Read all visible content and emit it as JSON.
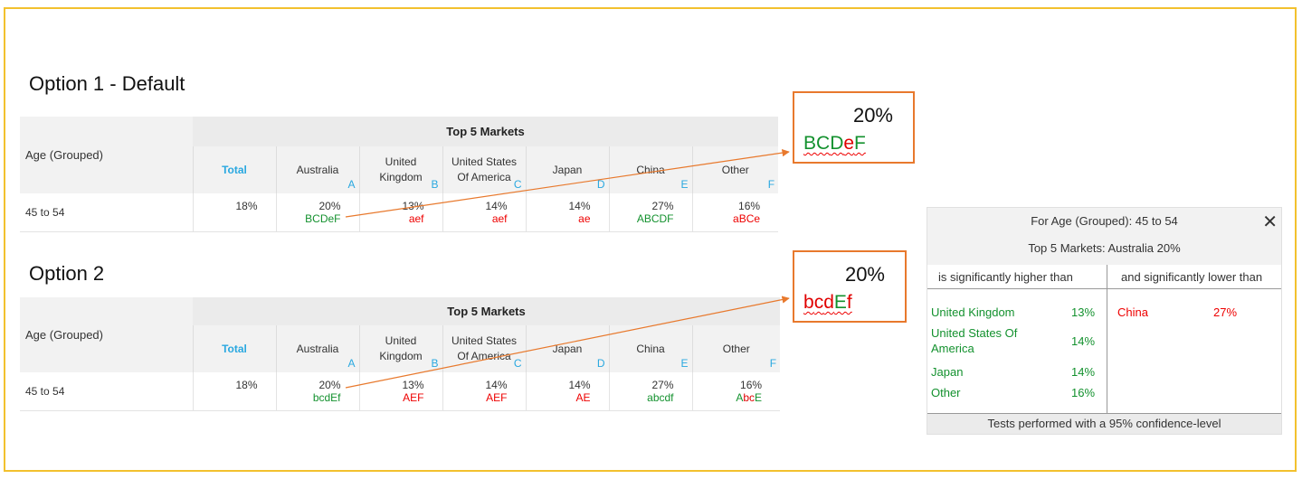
{
  "colors": {
    "frame": "#f2c12e",
    "callout_border": "#e8792d",
    "arrow": "#e8792d",
    "significant_higher": "#13912e",
    "significant_lower": "#e00000",
    "column_letter": "#29a8e0"
  },
  "option1": {
    "title": "Option 1 - Default",
    "row_header": "Age (Grouped)",
    "group_header": "Top 5 Markets",
    "columns": [
      {
        "name": "Total",
        "letter": ""
      },
      {
        "name": "Australia",
        "letter": "A"
      },
      {
        "name": "United Kingdom",
        "letter": "B"
      },
      {
        "name": "United States Of America",
        "letter": "C"
      },
      {
        "name": "Japan",
        "letter": "D"
      },
      {
        "name": "China",
        "letter": "E"
      },
      {
        "name": "Other",
        "letter": "F"
      }
    ],
    "row_label": "45 to 54",
    "cells": [
      {
        "value": "18%",
        "sig": ""
      },
      {
        "value": "20%",
        "sig": "BCDeF"
      },
      {
        "value": "13%",
        "sig": "aef"
      },
      {
        "value": "14%",
        "sig": "aef"
      },
      {
        "value": "14%",
        "sig": "ae"
      },
      {
        "value": "27%",
        "sig": "ABCDF"
      },
      {
        "value": "16%",
        "sig": "aBCe"
      }
    ],
    "callout": {
      "value": "20%",
      "sig": "BCDeF"
    }
  },
  "option2": {
    "title": "Option 2",
    "row_header": "Age (Grouped)",
    "group_header": "Top 5 Markets",
    "columns": [
      {
        "name": "Total",
        "letter": ""
      },
      {
        "name": "Australia",
        "letter": "A"
      },
      {
        "name": "United Kingdom",
        "letter": "B"
      },
      {
        "name": "United States Of America",
        "letter": "C"
      },
      {
        "name": "Japan",
        "letter": "D"
      },
      {
        "name": "China",
        "letter": "E"
      },
      {
        "name": "Other",
        "letter": "F"
      }
    ],
    "row_label": "45 to 54",
    "cells": [
      {
        "value": "18%",
        "sig": ""
      },
      {
        "value": "20%",
        "sig": "bcdEf"
      },
      {
        "value": "13%",
        "sig": "AEF"
      },
      {
        "value": "14%",
        "sig": "AEF"
      },
      {
        "value": "14%",
        "sig": "AE"
      },
      {
        "value": "27%",
        "sig": "abcdf"
      },
      {
        "value": "16%",
        "sig": "AbcE"
      }
    ],
    "callout": {
      "value": "20%",
      "sig": "bcdEf"
    }
  },
  "panel": {
    "title": "For Age (Grouped): 45 to 54",
    "subtitle": "Top 5 Markets: Australia 20%",
    "higher_header": "is significantly higher than",
    "lower_header": "and significantly lower than",
    "higher": [
      {
        "label": "United Kingdom",
        "value": "13%"
      },
      {
        "label": "United States Of America",
        "value": "14%"
      },
      {
        "label": "Japan",
        "value": "14%"
      },
      {
        "label": "Other",
        "value": "16%"
      }
    ],
    "lower": [
      {
        "label": "China",
        "value": "27%"
      }
    ],
    "footer": "Tests performed with a 95% confidence-level",
    "close_icon": "close-icon"
  }
}
